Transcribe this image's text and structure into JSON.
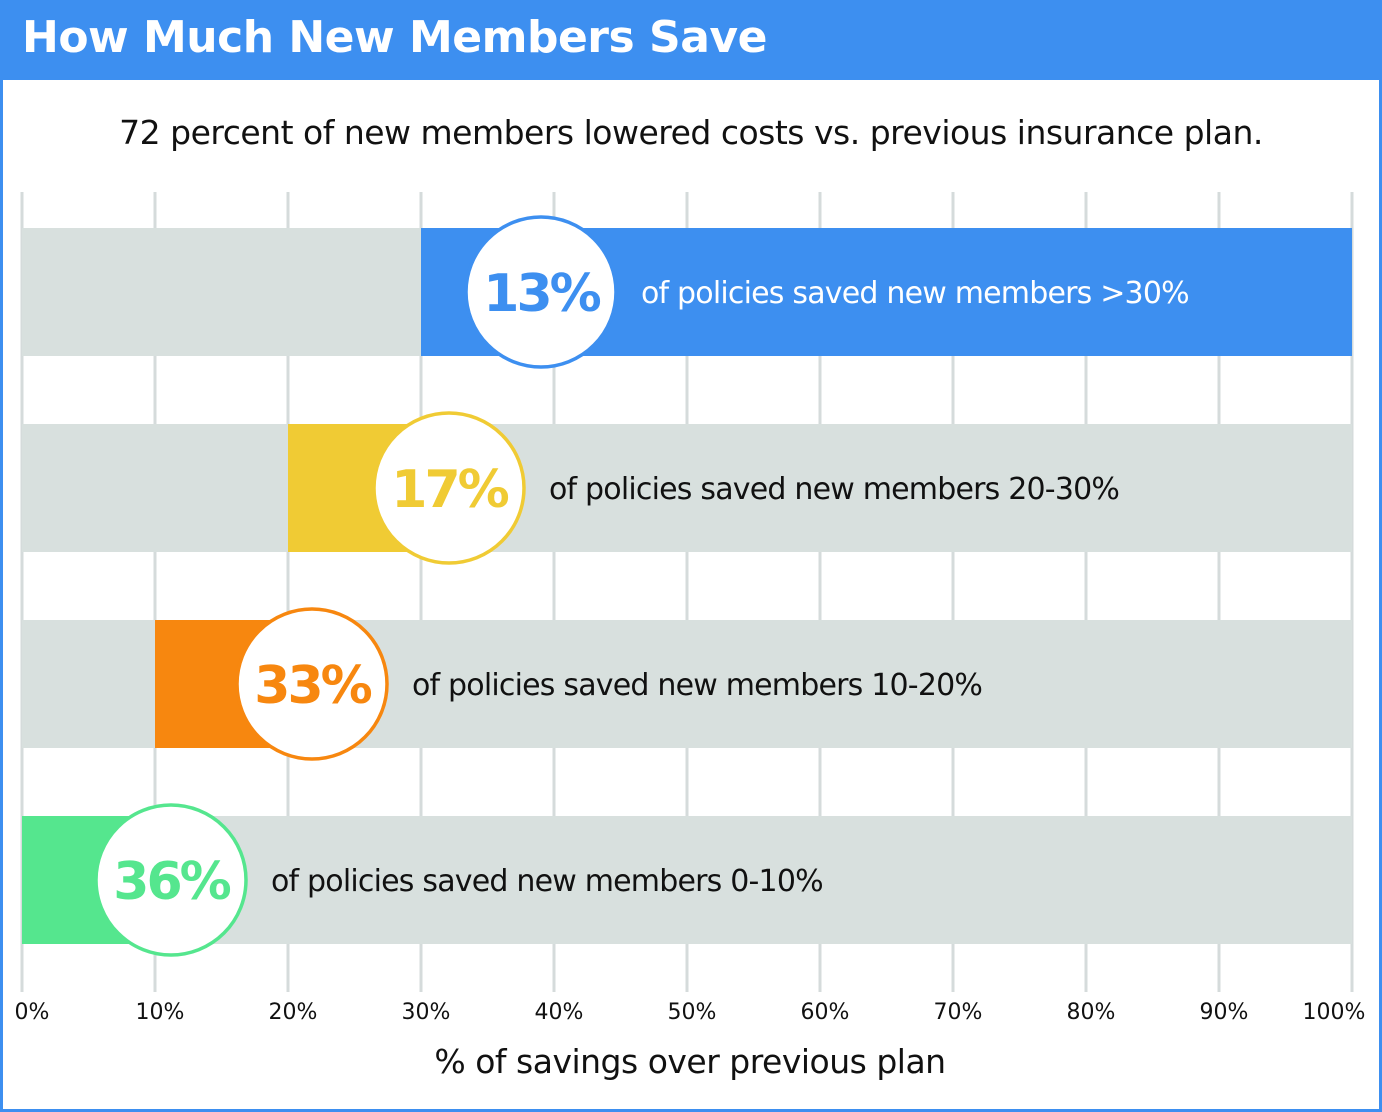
{
  "header": {
    "title": "How Much New Members Save"
  },
  "subtitle": "72 percent of new members lowered costs vs. previous insurance plan.",
  "colors": {
    "header": "#3d8ff0",
    "track": "#d8e0de",
    "grid": "#d5dbdb"
  },
  "chart_data": {
    "type": "bar",
    "orientation": "horizontal",
    "xlabel": "% of savings over previous plan",
    "xlim": [
      0,
      100
    ],
    "xticks": [
      "0%",
      "10%",
      "20%",
      "30%",
      "40%",
      "50%",
      "60%",
      "70%",
      "80%",
      "90%",
      "100%"
    ],
    "grid": true,
    "rows": [
      {
        "share": "13%",
        "label": "of policies saved new members >30%",
        "range": [
          30,
          100
        ],
        "color": "#3d8ff0"
      },
      {
        "share": "17%",
        "label": "of policies saved new members 20-30%",
        "range": [
          20,
          30
        ],
        "color": "#f0cb34"
      },
      {
        "share": "33%",
        "label": "of policies saved new members 10-20%",
        "range": [
          10,
          20
        ],
        "color": "#f7870f"
      },
      {
        "share": "36%",
        "label": "of policies saved new members 0-10%",
        "range": [
          0,
          10
        ],
        "color": "#55e68e"
      }
    ]
  }
}
